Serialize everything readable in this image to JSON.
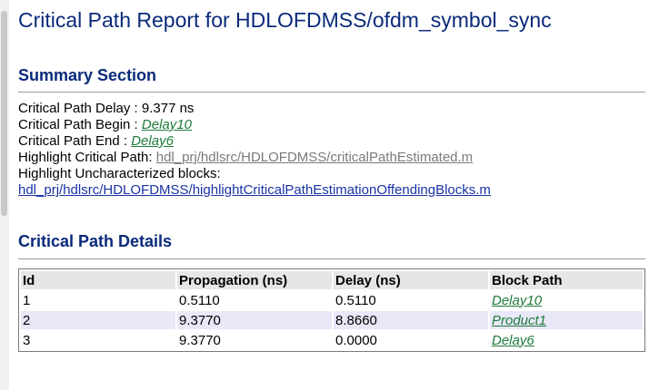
{
  "title": "Critical Path Report for HDLOFDMSS/ofdm_symbol_sync",
  "summary": {
    "heading": "Summary Section",
    "delay_label": "Critical Path Delay : ",
    "delay_value": "9.377 ns",
    "begin_label": "Critical Path Begin : ",
    "begin_link": "Delay10",
    "end_label": "Critical Path End : ",
    "end_link": "Delay6",
    "highlight_label": "Highlight Critical Path: ",
    "highlight_link": "hdl_prj/hdlsrc/HDLOFDMSS/criticalPathEstimated.m",
    "uncharacterized_label": "Highlight Uncharacterized blocks:",
    "uncharacterized_link": "hdl_prj/hdlsrc/HDLOFDMSS/highlightCriticalPathEstimationOffendingBlocks.m"
  },
  "details": {
    "heading": "Critical Path Details",
    "columns": [
      "Id",
      "Propagation (ns)",
      "Delay (ns)",
      "Block Path"
    ],
    "rows": [
      {
        "id": "1",
        "propagation": "0.5110",
        "delay": "0.5110",
        "block": "Delay10"
      },
      {
        "id": "2",
        "propagation": "9.3770",
        "delay": "8.8660",
        "block": "Product1"
      },
      {
        "id": "3",
        "propagation": "9.3770",
        "delay": "0.0000",
        "block": "Delay6"
      }
    ]
  },
  "colors": {
    "heading": "#0a2a7a",
    "link_green": "#1e7a3a",
    "link_gray": "#7a7a7a",
    "link_blue": "#1a33a6",
    "row_alt": "#e8e8f8"
  }
}
